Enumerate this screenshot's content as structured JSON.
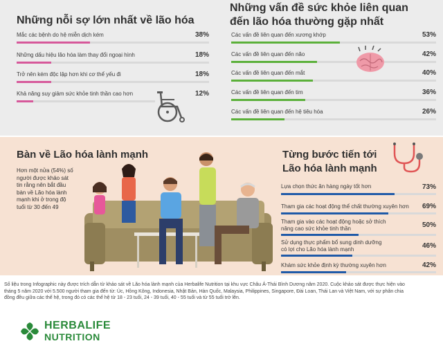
{
  "fears": {
    "title": "Những nỗi sợ lớn nhất về lão hóa",
    "items": [
      {
        "label": "Mắc các bệnh do hệ miễn dịch kém",
        "pct_text": "38%",
        "value": 38
      },
      {
        "label": "Những dấu hiệu lão hóa làm thay đổi ngoại hình",
        "pct_text": "18%",
        "value": 18
      },
      {
        "label": "Trở nên kém độc lập hơn khi cơ thể yếu đi",
        "pct_text": "18%",
        "value": 18
      },
      {
        "label": "Khả năng suy giảm sức khỏe tinh thần cao hơn",
        "pct_text": "12%",
        "value": 12
      }
    ]
  },
  "health_issues": {
    "title_line1": "Những vấn đề sức khỏe liên quan",
    "title_line2": "đến lão hóa thường gặp nhất",
    "items": [
      {
        "label": "Các vấn đề liên quan đến xương khớp",
        "pct_text": "53%",
        "value": 53
      },
      {
        "label": "Các vấn đề liên quan đến não",
        "pct_text": "42%",
        "value": 42
      },
      {
        "label": "Các vấn đề liên quan đến mắt",
        "pct_text": "40%",
        "value": 40
      },
      {
        "label": "Các vấn đề liên quan đến tim",
        "pct_text": "36%",
        "value": 36
      },
      {
        "label": "Các vấn đề liên quan đến hệ tiêu hóa",
        "pct_text": "26%",
        "value": 26
      }
    ]
  },
  "healthy_aging": {
    "title": "Bàn về Lão hóa lành mạnh",
    "description_lines": [
      "Hơn một nửa (54%) số",
      "người được khảo sát",
      "tin rằng nên bắt đầu",
      "bàn về Lão hóa lành",
      "mạnh khi ở trong độ",
      "tuổi từ 30 đến 49"
    ]
  },
  "steps": {
    "title_line1": "Từng bước tiến tới",
    "title_line2": "Lão hóa lành mạnh",
    "items": [
      {
        "label_lines": [
          "Lựa chọn thức ăn hàng ngày tốt hơn"
        ],
        "pct_text": "73%",
        "value": 73
      },
      {
        "label_lines": [
          "Tham gia các hoạt động thể chất thường xuyên hơn"
        ],
        "pct_text": "69%",
        "value": 69
      },
      {
        "label_lines": [
          "Tham gia vào các hoạt động hoặc sở thích",
          "nâng cao sức khỏe tinh thần"
        ],
        "pct_text": "50%",
        "value": 50
      },
      {
        "label_lines": [
          "Sử dụng thực phẩm bổ sung dinh dưỡng",
          "có lợi cho Lão hóa lành mạnh"
        ],
        "pct_text": "46%",
        "value": 46
      },
      {
        "label_lines": [
          "Khám sức khỏe định kỳ thường xuyên hơn"
        ],
        "pct_text": "42%",
        "value": 42
      }
    ]
  },
  "footnote_lines": [
    "Số liệu trong Infographic này được trích dẫn từ khảo sát về Lão hóa lành mạnh của Herbalife Nutrition tại khu vực Châu Á-Thái Bình Dương năm 2020. Cuộc khảo sát được thực hiện vào",
    "tháng 5 năm 2020 với 5.500 người tham gia đến từ: Úc, Hồng Kông, Indonesia, Nhật Bản, Hàn Quốc, Malaysia, Philippines, Singapore, Đài Loan, Thái Lan và Việt Nam, với sự phân chia",
    "đồng đều giữa các thế hệ, trong đó có các thế hệ từ 18 - 23 tuổi, 24 - 39 tuổi, 40 - 55 tuổi và từ 55 tuổi trở lên."
  ],
  "logo": {
    "line1": "HERBALIFE",
    "line2": "NUTRITION"
  },
  "colors": {
    "pink": "#d6589a",
    "green": "#5bb03a",
    "blue": "#1f5aa8",
    "brand": "#2a8a3a"
  }
}
